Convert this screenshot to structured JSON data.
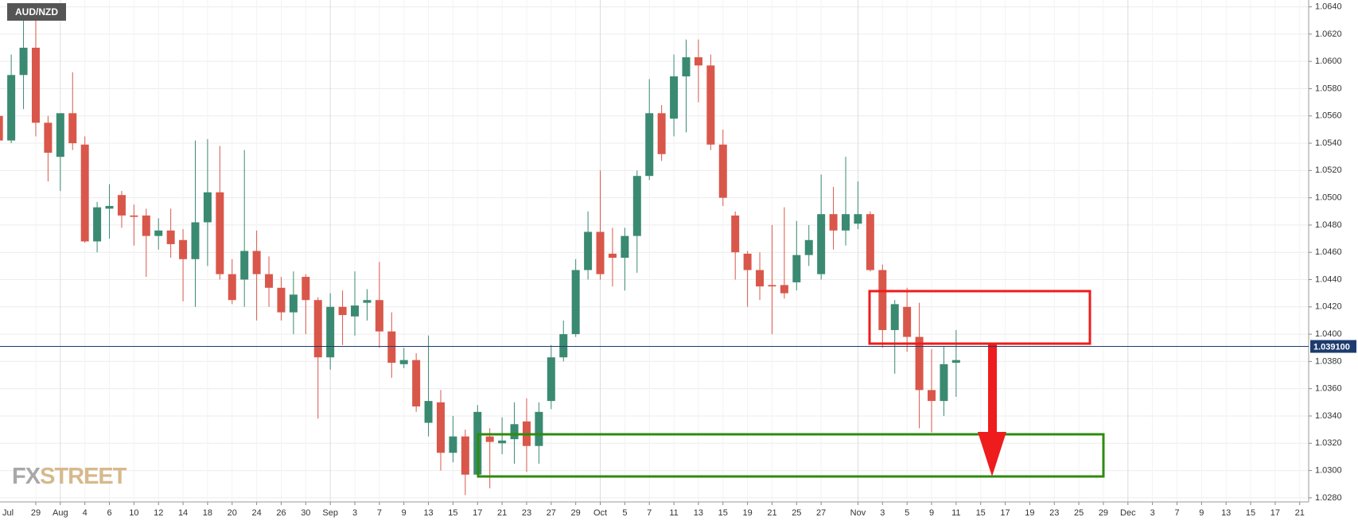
{
  "chart_data": {
    "type": "candlestick",
    "title": "AUD/NZD",
    "categories": [
      "Jul",
      null,
      null,
      "29",
      null,
      "Aug",
      null,
      "4",
      null,
      "6",
      null,
      "10",
      null,
      "12",
      null,
      "14",
      null,
      "18",
      null,
      "20",
      null,
      "24",
      null,
      "26",
      null,
      "30",
      null,
      "Sep",
      null,
      "3",
      null,
      "7",
      null,
      "9",
      null,
      "13",
      null,
      "15",
      null,
      "17",
      null,
      "21",
      null,
      "23",
      null,
      "27",
      null,
      "29",
      null,
      "Oct",
      null,
      "5",
      null,
      "7",
      null,
      "11",
      null,
      "13",
      null,
      "15",
      null,
      "19",
      null,
      "21",
      null,
      "25",
      null,
      "27",
      null,
      null,
      "Nov",
      null,
      "3",
      null,
      "5",
      null,
      "9",
      null,
      "11",
      null,
      "15",
      null,
      "17",
      null,
      "19",
      null,
      "23",
      null,
      "25",
      null,
      "29",
      null,
      "Dec",
      null,
      "3",
      null,
      "7",
      null,
      "9",
      null,
      "13",
      null,
      "15",
      null,
      "17",
      null,
      "21"
    ],
    "open": [
      1.056,
      1.0542,
      1.059,
      1.061,
      1.0555,
      1.053,
      1.0562,
      1.0539,
      1.0468,
      1.0492,
      1.0502,
      1.0487,
      1.0487,
      1.0472,
      1.0476,
      1.0469,
      1.0455,
      1.0482,
      1.0504,
      1.0444,
      1.044,
      1.0461,
      1.0444,
      1.0434,
      1.0416,
      1.0442,
      1.0425,
      1.0383,
      1.042,
      1.0413,
      1.0423,
      1.0425,
      1.0402,
      1.0378,
      1.0381,
      1.0335,
      1.035,
      1.0313,
      1.0325,
      1.0297,
      1.0325,
      1.032,
      1.0323,
      1.0336,
      1.0318,
      1.0351,
      1.0383,
      1.04,
      1.0447,
      1.0475,
      1.0459,
      1.0456,
      1.0472,
      1.0516,
      1.0562,
      1.0558,
      1.0589,
      1.0603,
      1.0597,
      1.0539,
      1.0487,
      1.0459,
      1.0447,
      1.0436,
      1.0436,
      1.0438,
      1.0458,
      1.0444,
      1.0488,
      1.0476,
      1.0481,
      1.0488,
      1.0447,
      1.0403,
      1.042,
      1.0398,
      1.0359,
      1.0351,
      1.0379,
      null,
      null,
      null,
      null,
      null,
      null,
      null,
      null,
      null,
      null,
      null,
      null,
      null,
      null,
      null,
      null,
      null,
      null,
      null,
      null,
      null,
      null,
      null,
      null,
      null,
      null,
      null,
      null
    ],
    "high": [
      1.0575,
      1.0605,
      1.064,
      1.063,
      1.056,
      1.0562,
      1.0592,
      1.0545,
      1.0497,
      1.051,
      1.0505,
      1.0495,
      1.0492,
      1.0485,
      1.0492,
      1.0477,
      1.0542,
      1.0543,
      1.0538,
      1.0455,
      1.0535,
      1.0476,
      1.0457,
      1.0442,
      1.0446,
      1.0444,
      1.0427,
      1.043,
      1.0432,
      1.0446,
      1.0433,
      1.0453,
      1.0416,
      1.039,
      1.0386,
      1.0399,
      1.0359,
      1.034,
      1.033,
      1.0348,
      1.0331,
      1.0339,
      1.035,
      1.0353,
      1.035,
      1.0392,
      1.041,
      1.0455,
      1.049,
      1.052,
      1.0478,
      1.0478,
      1.052,
      1.0587,
      1.0568,
      1.0605,
      1.0616,
      1.0616,
      1.0605,
      1.055,
      1.049,
      1.0461,
      1.046,
      1.048,
      1.0493,
      1.0483,
      1.048,
      1.0517,
      1.0508,
      1.053,
      1.0512,
      1.049,
      1.0451,
      1.0425,
      1.0434,
      1.0423,
      1.0389,
      1.0391,
      1.0403,
      null,
      null,
      null,
      null,
      null,
      null,
      null,
      null,
      null,
      null,
      null,
      null,
      null,
      null,
      null,
      null,
      null,
      null,
      null,
      null,
      null,
      null,
      null,
      null,
      null,
      null,
      null,
      null
    ],
    "low": [
      1.054,
      1.054,
      1.0565,
      1.0545,
      1.0512,
      1.0505,
      1.0535,
      1.0467,
      1.046,
      1.047,
      1.0478,
      1.0465,
      1.0442,
      1.0462,
      1.0456,
      1.0424,
      1.042,
      1.045,
      1.044,
      1.0422,
      1.042,
      1.041,
      1.042,
      1.041,
      1.04,
      1.04,
      1.0338,
      1.0374,
      1.0392,
      1.0399,
      1.041,
      1.039,
      1.0368,
      1.0375,
      1.0343,
      1.0325,
      1.03,
      1.0306,
      1.0282,
      1.0295,
      1.0287,
      1.0312,
      1.0305,
      1.0299,
      1.0305,
      1.0345,
      1.038,
      1.0398,
      1.044,
      1.044,
      1.0435,
      1.0432,
      1.0445,
      1.0513,
      1.0527,
      1.0545,
      1.0548,
      1.057,
      1.0535,
      1.0494,
      1.044,
      1.042,
      1.0425,
      1.04,
      1.0426,
      1.0432,
      1.045,
      1.044,
      1.0462,
      1.0465,
      1.0477,
      1.0446,
      1.039,
      1.0371,
      1.0387,
      1.0331,
      1.0328,
      1.034,
      1.0354,
      null,
      null,
      null,
      null,
      null,
      null,
      null,
      null,
      null,
      null,
      null,
      null,
      null,
      null,
      null,
      null,
      null,
      null,
      null,
      null,
      null,
      null,
      null,
      null,
      null,
      null,
      null,
      null
    ],
    "close": [
      1.0542,
      1.059,
      1.061,
      1.0555,
      1.0533,
      1.0562,
      1.054,
      1.0468,
      1.0493,
      1.0494,
      1.0487,
      1.0486,
      1.0472,
      1.0476,
      1.0466,
      1.0455,
      1.0482,
      1.0504,
      1.0444,
      1.0425,
      1.0461,
      1.0444,
      1.0434,
      1.0416,
      1.0429,
      1.0425,
      1.0383,
      1.042,
      1.0414,
      1.0421,
      1.0425,
      1.0402,
      1.0379,
      1.0381,
      1.0347,
      1.0351,
      1.0313,
      1.0325,
      1.0297,
      1.0343,
      1.0321,
      1.0322,
      1.0334,
      1.0318,
      1.0343,
      1.0383,
      1.04,
      1.0447,
      1.0475,
      1.0444,
      1.0456,
      1.0472,
      1.0516,
      1.0562,
      1.0532,
      1.0589,
      1.0603,
      1.0597,
      1.0539,
      1.05,
      1.046,
      1.0447,
      1.0435,
      1.0435,
      1.043,
      1.0458,
      1.0469,
      1.0488,
      1.0476,
      1.0488,
      1.0488,
      1.0447,
      1.0403,
      1.0422,
      1.0398,
      1.0359,
      1.0351,
      1.0378,
      1.0381,
      null,
      null,
      null,
      null,
      null,
      null,
      null,
      null,
      null,
      null,
      null,
      null,
      null,
      null,
      null,
      null,
      null,
      null,
      null,
      null,
      null,
      null,
      null,
      null,
      null,
      null,
      null,
      null
    ],
    "up_color": "#3a8a72",
    "down_color": "#d9574a",
    "ylim": [
      1.0277,
      1.0645
    ],
    "yticks": [
      {
        "value": 1.028,
        "label": "1.0280"
      },
      {
        "value": 1.03,
        "label": "1.0300"
      },
      {
        "value": 1.032,
        "label": "1.0320"
      },
      {
        "value": 1.034,
        "label": "1.0340"
      },
      {
        "value": 1.036,
        "label": "1.0360"
      },
      {
        "value": 1.038,
        "label": "1.0380"
      },
      {
        "value": 1.04,
        "label": "1.0400"
      },
      {
        "value": 1.042,
        "label": "1.0420"
      },
      {
        "value": 1.044,
        "label": "1.0440"
      },
      {
        "value": 1.046,
        "label": "1.0460"
      },
      {
        "value": 1.048,
        "label": "1.0480"
      },
      {
        "value": 1.05,
        "label": "1.0500"
      },
      {
        "value": 1.052,
        "label": "1.0520"
      },
      {
        "value": 1.054,
        "label": "1.0540"
      },
      {
        "value": 1.056,
        "label": "1.0560"
      },
      {
        "value": 1.058,
        "label": "1.0580"
      },
      {
        "value": 1.06,
        "label": "1.0600"
      },
      {
        "value": 1.062,
        "label": "1.0620"
      },
      {
        "value": 1.064,
        "label": "1.0640"
      }
    ],
    "grid": true,
    "current_price": {
      "value": 1.0391,
      "label": "1.039100"
    }
  },
  "logo": [
    "FX",
    "STREET"
  ]
}
